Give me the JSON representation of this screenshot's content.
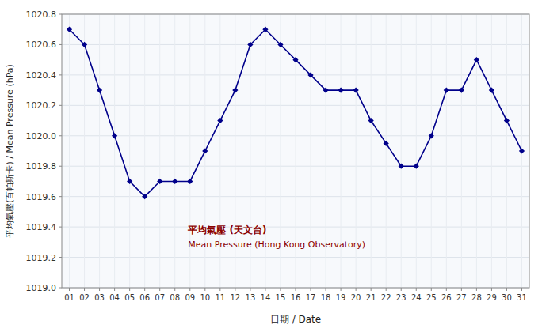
{
  "chart_data": {
    "type": "line",
    "x_label": "日期 / Date",
    "y_label": "平均氣壓(百帕斯卡) / Mean Pressure (hPa)",
    "x": [
      1,
      2,
      3,
      4,
      5,
      6,
      7,
      8,
      9,
      10,
      11,
      12,
      13,
      14,
      15,
      16,
      17,
      18,
      19,
      20,
      21,
      22,
      23,
      24,
      25,
      26,
      27,
      28,
      29,
      30,
      31
    ],
    "series": [
      {
        "name": "平均氣壓 (天文台)",
        "color": "#00008B",
        "marker": "diamond",
        "values": [
          1020.7,
          1020.6,
          1020.3,
          1020.0,
          1019.7,
          1019.6,
          1019.7,
          1019.7,
          1019.7,
          1019.9,
          1020.1,
          1020.3,
          1020.6,
          1020.7,
          1020.6,
          1020.5,
          1020.4,
          1020.3,
          1020.3,
          1020.3,
          1020.1,
          1019.95,
          1019.8,
          1019.8,
          1020.0,
          1020.3,
          1020.3,
          1020.5,
          1020.3,
          1020.1,
          1019.9
        ]
      }
    ],
    "annotations": [
      {
        "text": "平均氣壓 (天文台)",
        "color": "#8B0000"
      },
      {
        "text": "Mean Pressure (Hong Kong Observatory)",
        "color": "#8B0000"
      }
    ],
    "xlim": [
      0.5,
      31.5
    ],
    "xticks": [
      {
        "value": 1,
        "label": "01"
      },
      {
        "value": 2,
        "label": "02"
      },
      {
        "value": 3,
        "label": "03"
      },
      {
        "value": 4,
        "label": "04"
      },
      {
        "value": 5,
        "label": "05"
      },
      {
        "value": 6,
        "label": "06"
      },
      {
        "value": 7,
        "label": "07"
      },
      {
        "value": 8,
        "label": "08"
      },
      {
        "value": 9,
        "label": "09"
      },
      {
        "value": 10,
        "label": "10"
      },
      {
        "value": 11,
        "label": "11"
      },
      {
        "value": 12,
        "label": "12"
      },
      {
        "value": 13,
        "label": "13"
      },
      {
        "value": 14,
        "label": "14"
      },
      {
        "value": 15,
        "label": "15"
      },
      {
        "value": 16,
        "label": "16"
      },
      {
        "value": 17,
        "label": "17"
      },
      {
        "value": 18,
        "label": "18"
      },
      {
        "value": 19,
        "label": "19"
      },
      {
        "value": 20,
        "label": "20"
      },
      {
        "value": 21,
        "label": "21"
      },
      {
        "value": 22,
        "label": "22"
      },
      {
        "value": 23,
        "label": "23"
      },
      {
        "value": 24,
        "label": "24"
      },
      {
        "value": 25,
        "label": "25"
      },
      {
        "value": 26,
        "label": "26"
      },
      {
        "value": 27,
        "label": "27"
      },
      {
        "value": 28,
        "label": "28"
      },
      {
        "value": 29,
        "label": "29"
      },
      {
        "value": 30,
        "label": "30"
      },
      {
        "value": 31,
        "label": "31"
      }
    ],
    "ylim": [
      1019.0,
      1020.8
    ],
    "yticks": [
      {
        "value": 1019.0,
        "label": "1019.0"
      },
      1019.2,
      1019.4,
      1019.6,
      1019.8,
      {
        "value": 1020.0,
        "label": "1020.0"
      },
      1020.2,
      1020.4,
      1020.6,
      1020.8
    ],
    "grid": true
  }
}
